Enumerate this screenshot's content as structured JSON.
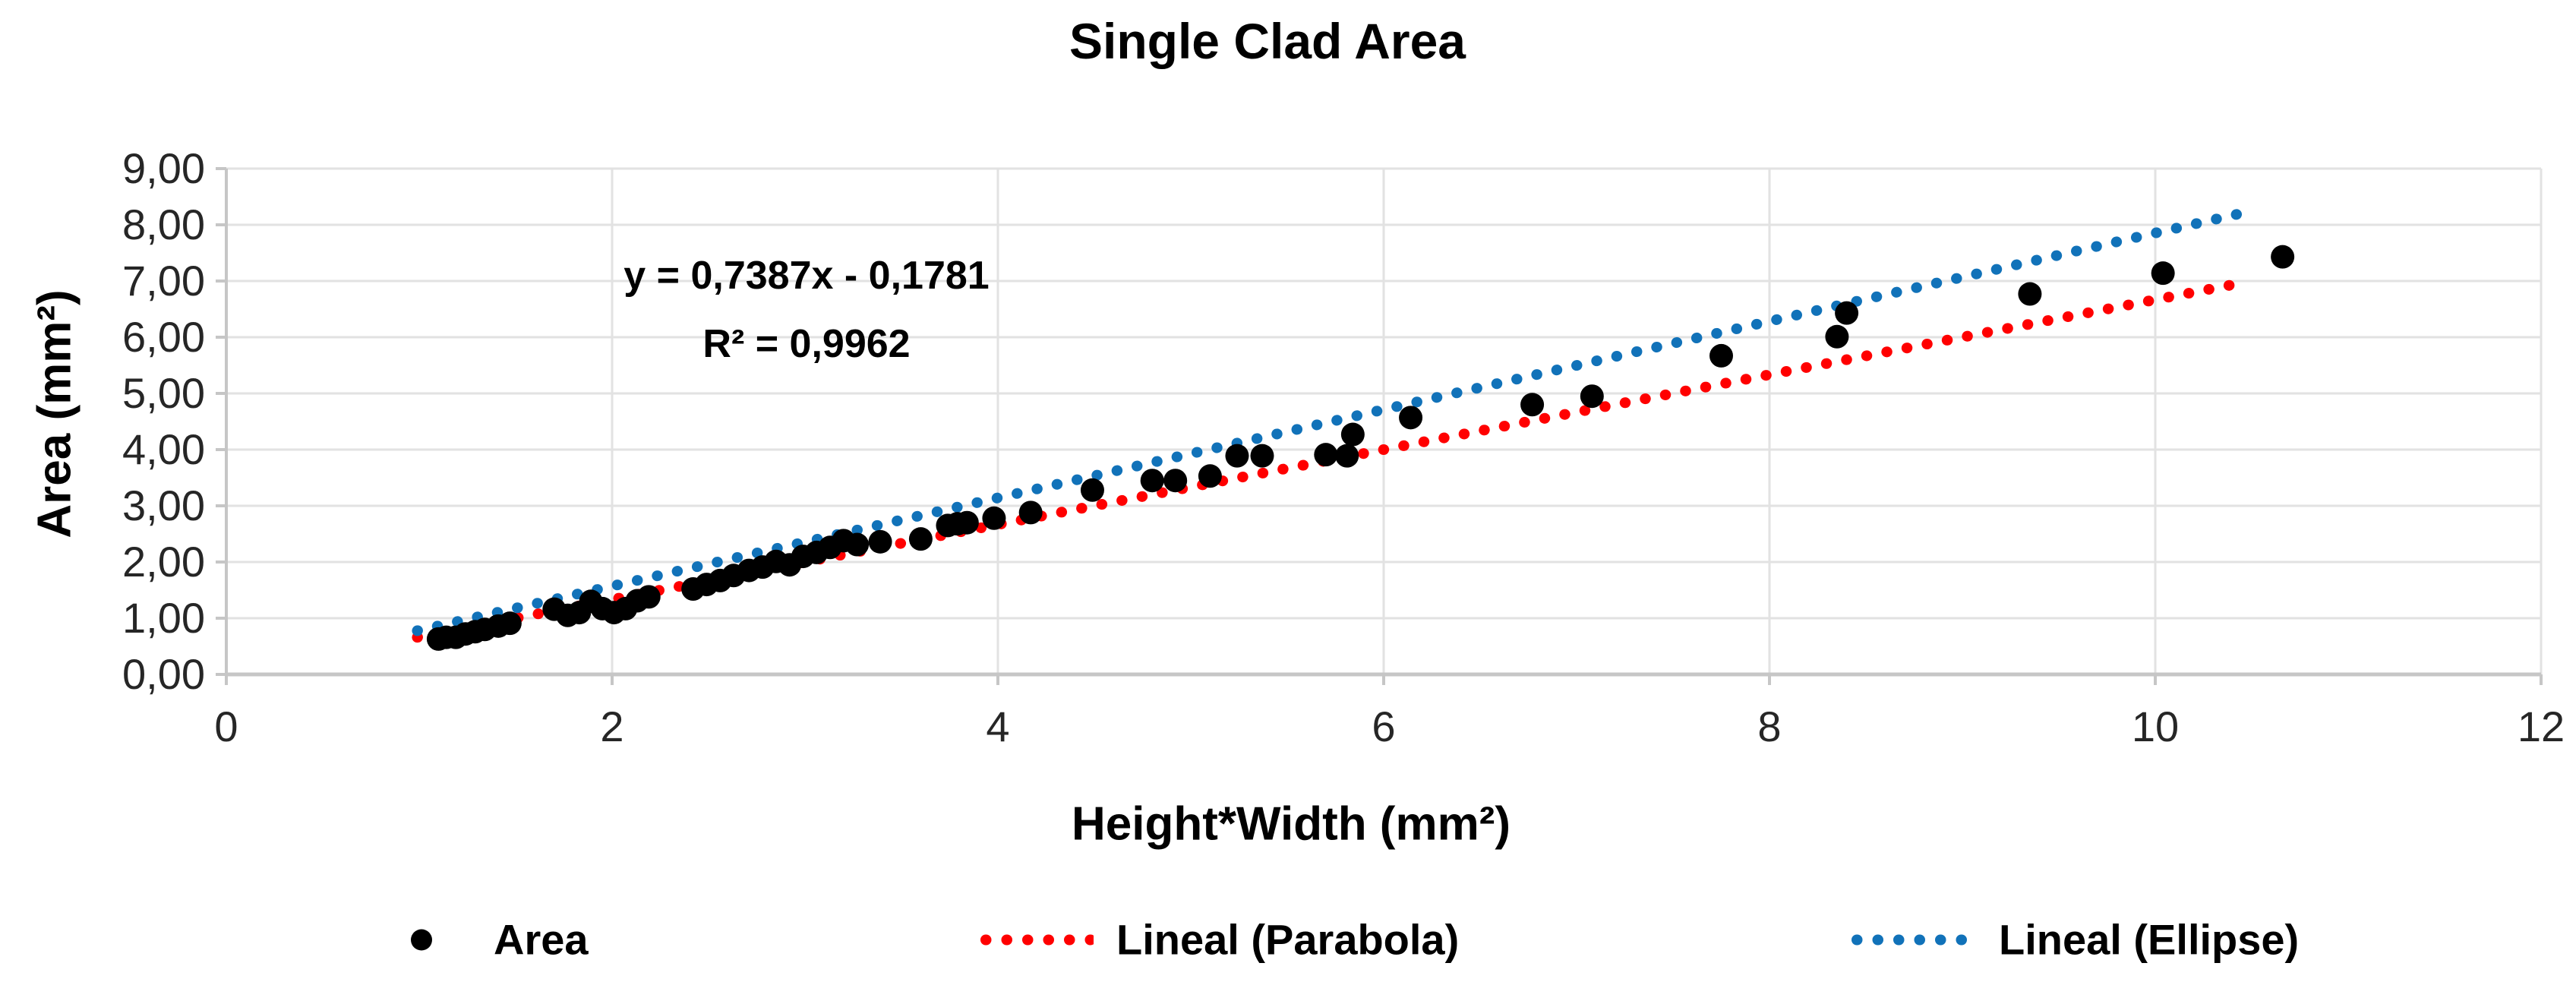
{
  "chart": {
    "title": "Single Clad Area",
    "y_axis_title": "Area  (mm²)",
    "x_axis_title": "Height*Width (mm²)",
    "annotation_line1": "y = 0,7387x - 0,1781",
    "annotation_line2": "R² = 0,9962",
    "legend_items": [
      {
        "label": "Area",
        "marker": "filled-circle",
        "color": "#000000"
      },
      {
        "label": "Lineal (Parabola)",
        "marker": "dotted-line",
        "color": "#ff0000"
      },
      {
        "label": "Lineal (Ellipse)",
        "marker": "dotted-line",
        "color": "#1172b9"
      }
    ],
    "colors": {
      "scatter": "#000000",
      "parabola_trend": "#ff0000",
      "ellipse_trend": "#1172b9",
      "gridline": "#e2e2e2",
      "axis_line": "#c6c6c6",
      "tick_label": "#262626"
    }
  },
  "chart_data": {
    "type": "scatter",
    "title": "Single Clad Area",
    "xlabel": "Height*Width (mm²)",
    "ylabel": "Area (mm²)",
    "xlim": [
      0,
      12
    ],
    "ylim": [
      0,
      9
    ],
    "x_tick_step": 2,
    "y_tick_step": 1,
    "x_tick_labels": [
      "0",
      "2",
      "4",
      "6",
      "8",
      "10",
      "12"
    ],
    "y_tick_labels": [
      "0,00",
      "1,00",
      "2,00",
      "3,00",
      "4,00",
      "5,00",
      "6,00",
      "7,00",
      "8,00",
      "9,00"
    ],
    "grid": true,
    "legend_position": "bottom",
    "annotation": {
      "text_lines": [
        "y = 0,7387x - 0,1781",
        "R² = 0,9962"
      ],
      "fit_slope": 0.7387,
      "fit_intercept": -0.1781,
      "r_squared": 0.9962
    },
    "series": [
      {
        "name": "Area",
        "type": "scatter",
        "color": "#000000",
        "points": [
          [
            1.1,
            0.63
          ],
          [
            1.14,
            0.66
          ],
          [
            1.19,
            0.66
          ],
          [
            1.24,
            0.72
          ],
          [
            1.29,
            0.76
          ],
          [
            1.34,
            0.8
          ],
          [
            1.41,
            0.86
          ],
          [
            1.47,
            0.91
          ],
          [
            1.7,
            1.16
          ],
          [
            1.77,
            1.05
          ],
          [
            1.83,
            1.1
          ],
          [
            1.89,
            1.3
          ],
          [
            1.95,
            1.17
          ],
          [
            2.01,
            1.1
          ],
          [
            2.07,
            1.17
          ],
          [
            2.13,
            1.31
          ],
          [
            2.19,
            1.38
          ],
          [
            2.42,
            1.52
          ],
          [
            2.49,
            1.6
          ],
          [
            2.56,
            1.67
          ],
          [
            2.63,
            1.76
          ],
          [
            2.71,
            1.85
          ],
          [
            2.78,
            1.91
          ],
          [
            2.85,
            2.01
          ],
          [
            2.92,
            1.95
          ],
          [
            2.99,
            2.1
          ],
          [
            3.06,
            2.17
          ],
          [
            3.13,
            2.26
          ],
          [
            3.2,
            2.38
          ],
          [
            3.27,
            2.31
          ],
          [
            3.39,
            2.36
          ],
          [
            3.6,
            2.41
          ],
          [
            3.74,
            2.65
          ],
          [
            3.79,
            2.68
          ],
          [
            3.84,
            2.7
          ],
          [
            3.98,
            2.78
          ],
          [
            4.17,
            2.88
          ],
          [
            4.49,
            3.28
          ],
          [
            4.8,
            3.45
          ],
          [
            4.92,
            3.45
          ],
          [
            5.1,
            3.53
          ],
          [
            5.24,
            3.89
          ],
          [
            5.37,
            3.89
          ],
          [
            5.7,
            3.91
          ],
          [
            5.81,
            3.89
          ],
          [
            5.84,
            4.27
          ],
          [
            6.14,
            4.57
          ],
          [
            6.77,
            4.8
          ],
          [
            7.08,
            4.95
          ],
          [
            7.75,
            5.67
          ],
          [
            8.35,
            6.01
          ],
          [
            8.4,
            6.43
          ],
          [
            9.35,
            6.77
          ],
          [
            10.04,
            7.14
          ],
          [
            10.66,
            7.43
          ]
        ]
      },
      {
        "name": "Lineal (Parabola)",
        "type": "trendline",
        "style": "dotted",
        "color": "#ff0000",
        "slope": 0.6667,
        "intercept": 0.0,
        "x_domain": [
          0.99,
          10.43
        ]
      },
      {
        "name": "Lineal (Ellipse)",
        "type": "trendline",
        "style": "dotted",
        "color": "#1172b9",
        "slope": 0.7854,
        "intercept": 0.0,
        "x_domain": [
          0.99,
          10.43
        ]
      }
    ]
  }
}
